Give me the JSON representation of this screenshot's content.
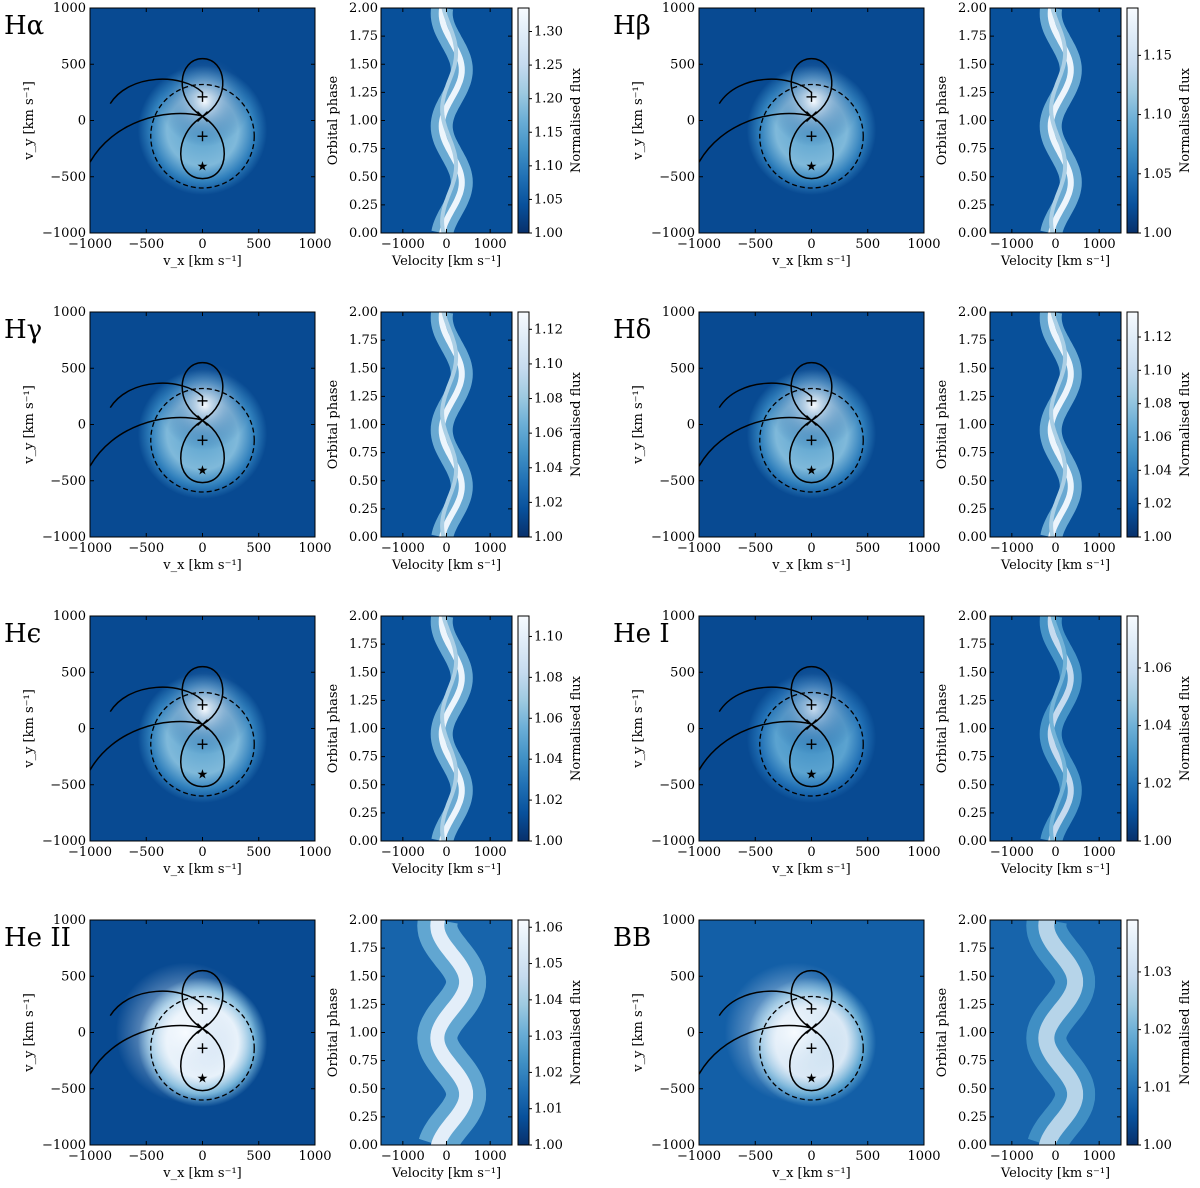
{
  "chart_data": {
    "type": "heatmap",
    "colormap": [
      "#08306b",
      "#08519c",
      "#2171b5",
      "#4292c6",
      "#6baed6",
      "#9ecae1",
      "#c6dbef",
      "#deebf7",
      "#f7fbff"
    ],
    "doppler": {
      "xlabel": "v_x [km s⁻¹]",
      "ylabel": "v_y [km s⁻¹]",
      "xlim": [
        -1000,
        1000
      ],
      "ylim": [
        -1000,
        1000
      ],
      "xticks": [
        "−1000",
        "−500",
        "0",
        "500",
        "1000"
      ],
      "yticks": [
        "−1000",
        "−500",
        "0",
        "500",
        "1000"
      ],
      "markers": {
        "primary_plus_vy": -140,
        "secondary_plus_vy": 210,
        "cross_vy": 35,
        "star_vy": -410,
        "disc_center_vy": -140,
        "disc_radius": 460
      }
    },
    "trailed": {
      "xlabel": "Velocity [km s⁻¹]",
      "ylabel": "Orbital phase",
      "xlim": [
        -1500,
        1500
      ],
      "ylim": [
        0.0,
        2.0
      ],
      "xticks": [
        "−1000",
        "0",
        "1000"
      ],
      "yticks": [
        "0.00",
        "0.25",
        "0.50",
        "0.75",
        "1.00",
        "1.25",
        "1.50",
        "1.75",
        "2.00"
      ]
    },
    "colorbar_label": "Normalised flux",
    "panels": [
      {
        "name": "Hα",
        "cbar_ticks": [
          "1.00",
          "1.05",
          "1.10",
          "1.15",
          "1.20",
          "1.25",
          "1.30"
        ],
        "cbar_max": 1.335,
        "style": "balmer"
      },
      {
        "name": "Hβ",
        "cbar_ticks": [
          "1.00",
          "1.05",
          "1.10",
          "1.15"
        ],
        "cbar_max": 1.19,
        "style": "balmer"
      },
      {
        "name": "Hγ",
        "cbar_ticks": [
          "1.00",
          "1.02",
          "1.04",
          "1.06",
          "1.08",
          "1.10",
          "1.12"
        ],
        "cbar_max": 1.13,
        "style": "balmer"
      },
      {
        "name": "Hδ",
        "cbar_ticks": [
          "1.00",
          "1.02",
          "1.04",
          "1.06",
          "1.08",
          "1.10",
          "1.12"
        ],
        "cbar_max": 1.135,
        "style": "balmer"
      },
      {
        "name": "Hϵ",
        "cbar_ticks": [
          "1.00",
          "1.02",
          "1.04",
          "1.06",
          "1.08",
          "1.10"
        ],
        "cbar_max": 1.11,
        "style": "balmer"
      },
      {
        "name": "He I",
        "cbar_ticks": [
          "1.00",
          "1.02",
          "1.04",
          "1.06"
        ],
        "cbar_max": 1.078,
        "style": "hei"
      },
      {
        "name": "He II",
        "cbar_ticks": [
          "1.00",
          "1.01",
          "1.02",
          "1.03",
          "1.04",
          "1.05",
          "1.06"
        ],
        "cbar_max": 1.062,
        "style": "heii"
      },
      {
        "name": "BB",
        "cbar_ticks": [
          "1.00",
          "1.01",
          "1.02",
          "1.03"
        ],
        "cbar_max": 1.039,
        "style": "bb"
      }
    ]
  }
}
